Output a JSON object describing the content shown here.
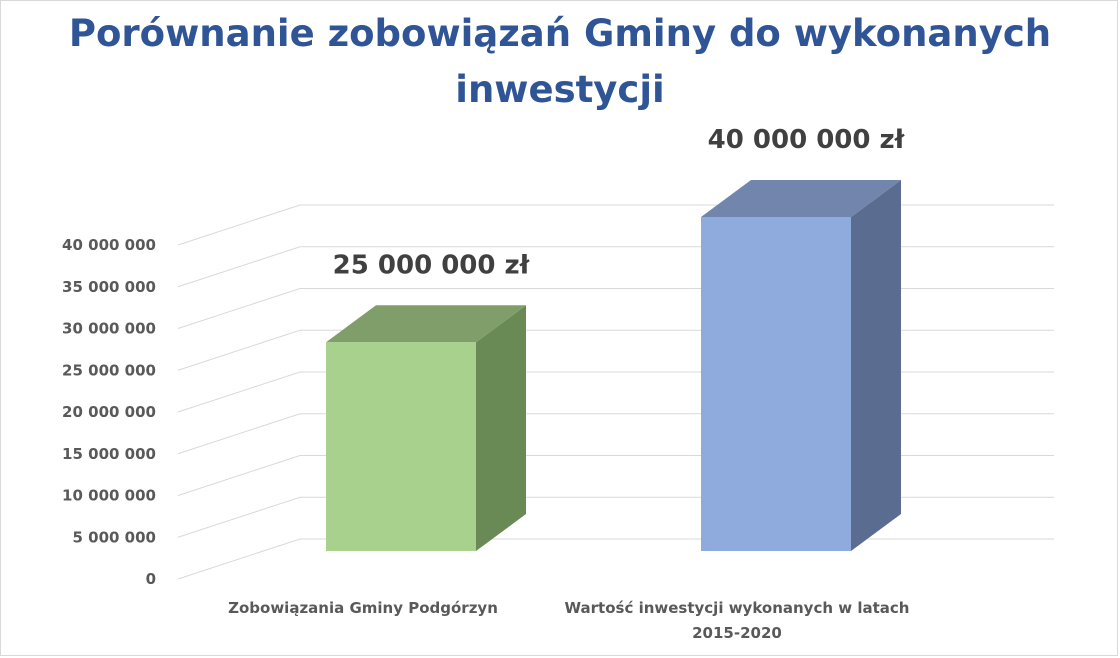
{
  "chart_data": {
    "type": "bar",
    "title": "Porównanie zobowiązań Gminy do wykonanych inwestycji",
    "categories": [
      "Zobowiązania Gminy Podgórzyn",
      "Wartość inwestycji wykonanych w latach 2015-2020"
    ],
    "values": [
      25000000,
      40000000
    ],
    "data_labels": [
      "25 000 000 zł",
      "40 000 000 zł"
    ],
    "y_ticks": [
      0,
      5000000,
      10000000,
      15000000,
      20000000,
      25000000,
      30000000,
      35000000,
      40000000
    ],
    "y_tick_labels": [
      "0",
      "5 000 000",
      "10 000 000",
      "15 000 000",
      "20 000 000",
      "25 000 000",
      "30 000 000",
      "35 000 000",
      "40 000 000"
    ],
    "ylim": [
      0,
      40000000
    ],
    "xlabel": "",
    "ylabel": "",
    "grid": true,
    "legend": "none",
    "style": "3d-column",
    "colors": {
      "title": "#2f5597",
      "bar_green_front": "#a9d18e",
      "bar_green_side": "#6a8a55",
      "bar_green_top": "#809e6a",
      "bar_blue_front": "#8faadc",
      "bar_blue_side": "#5a6d91",
      "bar_blue_top": "#7286ad",
      "gridline": "#d9d9d9",
      "axis_text": "#595959",
      "data_label": "#404040"
    }
  }
}
